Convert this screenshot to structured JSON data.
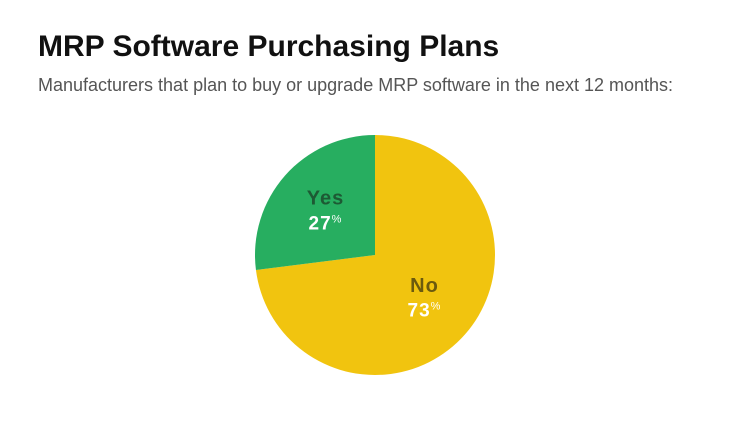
{
  "chart_data": {
    "type": "pie",
    "title": "MRP Software Purchasing Plans",
    "subtitle": "Manufacturers that plan to buy or upgrade MRP software in the next 12 months:",
    "categories": [
      "No",
      "Yes"
    ],
    "values": [
      73,
      27
    ],
    "value_labels": [
      "73%",
      "27%"
    ],
    "colors": [
      "#f1c40f",
      "#27ae60"
    ],
    "label_colors": [
      "#6b5a0e",
      "#1d5a34"
    ]
  }
}
